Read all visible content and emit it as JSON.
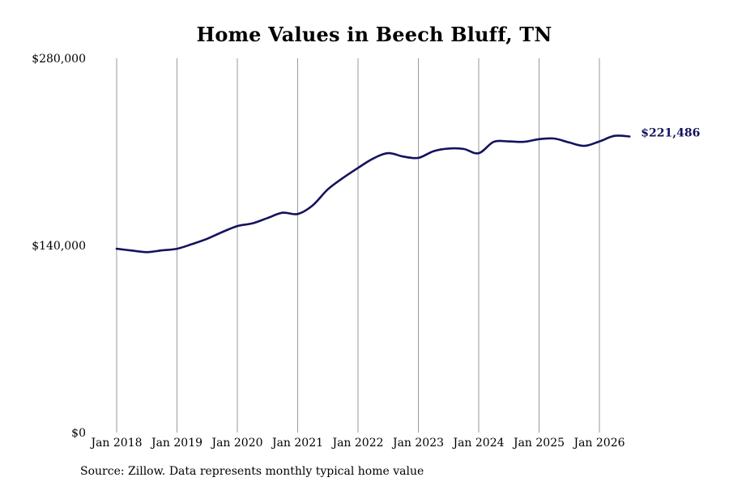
{
  "chart_data": {
    "type": "line",
    "title": "Home Values in Beech Bluff, TN",
    "source": "Source: Zillow. Data represents monthly typical home value",
    "ylim": [
      0,
      280000
    ],
    "y_ticks": [
      {
        "value": 0,
        "label": "$0"
      },
      {
        "value": 140000,
        "label": "$140,000"
      },
      {
        "value": 280000,
        "label": "$280,000"
      }
    ],
    "x_ticks": [
      {
        "value": "2018-01",
        "label": "Jan 2018"
      },
      {
        "value": "2019-01",
        "label": "Jan 2019"
      },
      {
        "value": "2020-01",
        "label": "Jan 2020"
      },
      {
        "value": "2021-01",
        "label": "Jan 2021"
      },
      {
        "value": "2022-01",
        "label": "Jan 2022"
      },
      {
        "value": "2023-01",
        "label": "Jan 2023"
      },
      {
        "value": "2024-01",
        "label": "Jan 2024"
      },
      {
        "value": "2025-01",
        "label": "Jan 2025"
      },
      {
        "value": "2026-01",
        "label": "Jan 2026"
      }
    ],
    "x_grid": true,
    "y_grid": false,
    "line_color": "#14125e",
    "grid_color": "#9a9a9a",
    "end_label": "$221,486",
    "series": [
      {
        "points": [
          [
            "2018-01",
            137500
          ],
          [
            "2018-04",
            136200
          ],
          [
            "2018-07",
            135000
          ],
          [
            "2018-10",
            136300
          ],
          [
            "2019-01",
            137500
          ],
          [
            "2019-04",
            141000
          ],
          [
            "2019-07",
            145000
          ],
          [
            "2019-10",
            150000
          ],
          [
            "2020-01",
            154500
          ],
          [
            "2020-04",
            156500
          ],
          [
            "2020-07",
            160500
          ],
          [
            "2020-10",
            164500
          ],
          [
            "2021-01",
            163500
          ],
          [
            "2021-04",
            170000
          ],
          [
            "2021-07",
            182000
          ],
          [
            "2021-10",
            190500
          ],
          [
            "2022-01",
            198000
          ],
          [
            "2022-04",
            205000
          ],
          [
            "2022-07",
            209000
          ],
          [
            "2022-10",
            206500
          ],
          [
            "2023-01",
            205500
          ],
          [
            "2023-04",
            210500
          ],
          [
            "2023-07",
            212500
          ],
          [
            "2023-10",
            212200
          ],
          [
            "2024-01",
            209000
          ],
          [
            "2024-04",
            217500
          ],
          [
            "2024-07",
            217800
          ],
          [
            "2024-10",
            217500
          ],
          [
            "2025-01",
            219500
          ],
          [
            "2025-04",
            220000
          ],
          [
            "2025-07",
            217000
          ],
          [
            "2025-10",
            214500
          ],
          [
            "2026-01",
            217800
          ],
          [
            "2026-04",
            222000
          ],
          [
            "2026-07",
            221486
          ]
        ]
      }
    ]
  }
}
